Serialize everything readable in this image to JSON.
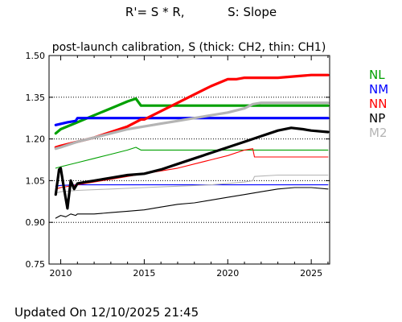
{
  "header": {
    "formula_text": "R'= S * R,",
    "formula_note": "S: Slope"
  },
  "footer": {
    "updated_text": "Updated On 12/10/2025 21:45"
  },
  "chart_data": {
    "type": "line",
    "title": "post-launch calibration, S (thick: CH2, thin: CH1)",
    "xlabel": "",
    "ylabel": "",
    "xlim": [
      2009.3,
      2026.1
    ],
    "ylim": [
      0.75,
      1.5
    ],
    "xticks": [
      2010,
      2015,
      2020,
      2025
    ],
    "yticks": [
      0.75,
      0.9,
      1.05,
      1.2,
      1.35,
      1.5
    ],
    "ytick_labels": [
      "0.75",
      "0.90",
      "1.05",
      "1.20",
      "1.35",
      "1.50"
    ],
    "grid": "horizontal dotted",
    "legend_placement": "right",
    "legend": [
      {
        "name": "NL",
        "color": "#00a000"
      },
      {
        "name": "NM",
        "color": "#0000ff"
      },
      {
        "name": "NN",
        "color": "#ff0000"
      },
      {
        "name": "NP",
        "color": "#000000"
      },
      {
        "name": "M2",
        "color": "#b4b4b4"
      }
    ],
    "series": [
      {
        "name": "NL",
        "channel": "CH2",
        "thick": true,
        "color": "#00a000",
        "x": [
          2009.7,
          2010.0,
          2011.0,
          2012.0,
          2013.0,
          2014.0,
          2014.5,
          2014.8,
          2015.0,
          2018.0,
          2021.0,
          2024.0,
          2026.0
        ],
        "y": [
          1.22,
          1.235,
          1.26,
          1.285,
          1.31,
          1.335,
          1.345,
          1.32,
          1.32,
          1.32,
          1.32,
          1.32,
          1.32
        ]
      },
      {
        "name": "NM",
        "channel": "CH2",
        "thick": true,
        "color": "#0000ff",
        "x": [
          2009.7,
          2010.4,
          2010.9,
          2011.0,
          2015.0,
          2020.0,
          2026.0
        ],
        "y": [
          1.25,
          1.26,
          1.265,
          1.275,
          1.275,
          1.275,
          1.275
        ]
      },
      {
        "name": "NN",
        "channel": "CH2",
        "thick": true,
        "color": "#ff0000",
        "x": [
          2009.7,
          2010.0,
          2011.0,
          2012.0,
          2013.0,
          2014.0,
          2014.8,
          2015.0,
          2016.0,
          2017.0,
          2018.0,
          2019.0,
          2020.0,
          2020.5,
          2021.0,
          2022.0,
          2023.0,
          2024.0,
          2025.0,
          2026.0
        ],
        "y": [
          1.17,
          1.175,
          1.19,
          1.205,
          1.225,
          1.245,
          1.27,
          1.27,
          1.3,
          1.33,
          1.36,
          1.39,
          1.415,
          1.415,
          1.42,
          1.42,
          1.42,
          1.425,
          1.43,
          1.43
        ]
      },
      {
        "name": "NP",
        "channel": "CH2",
        "thick": true,
        "color": "#000000",
        "x": [
          2009.7,
          2009.9,
          2010.0,
          2010.2,
          2010.4,
          2010.6,
          2010.8,
          2011.0,
          2011.5,
          2012.0,
          2013.0,
          2014.0,
          2015.0,
          2016.0,
          2017.0,
          2018.0,
          2019.0,
          2020.0,
          2021.0,
          2022.0,
          2023.0,
          2023.8,
          2024.5,
          2025.0,
          2026.0
        ],
        "y": [
          1.0,
          1.09,
          1.095,
          1.02,
          0.95,
          1.05,
          1.02,
          1.04,
          1.045,
          1.05,
          1.06,
          1.07,
          1.075,
          1.09,
          1.11,
          1.13,
          1.15,
          1.17,
          1.19,
          1.21,
          1.23,
          1.24,
          1.235,
          1.23,
          1.225
        ]
      },
      {
        "name": "M2",
        "channel": "CH2",
        "thick": true,
        "color": "#b4b4b4",
        "x": [
          2009.7,
          2010.0,
          2011.0,
          2012.0,
          2013.0,
          2014.0,
          2015.0,
          2016.0,
          2017.0,
          2018.0,
          2019.0,
          2020.0,
          2021.0,
          2021.5,
          2022.0,
          2024.0,
          2026.0
        ],
        "y": [
          1.165,
          1.17,
          1.19,
          1.205,
          1.22,
          1.235,
          1.245,
          1.255,
          1.265,
          1.275,
          1.285,
          1.295,
          1.31,
          1.325,
          1.33,
          1.33,
          1.33
        ]
      },
      {
        "name": "NL",
        "channel": "CH1",
        "thick": false,
        "color": "#00a000",
        "x": [
          2009.7,
          2010.0,
          2011.0,
          2012.0,
          2013.0,
          2014.0,
          2014.5,
          2014.8,
          2015.0,
          2020.0,
          2026.0
        ],
        "y": [
          1.095,
          1.1,
          1.115,
          1.13,
          1.145,
          1.16,
          1.17,
          1.16,
          1.16,
          1.16,
          1.16
        ]
      },
      {
        "name": "NM",
        "channel": "CH1",
        "thick": false,
        "color": "#0000ff",
        "x": [
          2009.7,
          2010.0,
          2011.0,
          2015.0,
          2020.0,
          2026.0
        ],
        "y": [
          1.03,
          1.033,
          1.035,
          1.035,
          1.035,
          1.035
        ]
      },
      {
        "name": "NN",
        "channel": "CH1",
        "thick": false,
        "color": "#ff0000",
        "x": [
          2009.7,
          2010.0,
          2011.0,
          2012.0,
          2013.0,
          2014.0,
          2015.0,
          2016.0,
          2017.0,
          2018.0,
          2019.0,
          2020.0,
          2021.0,
          2021.5,
          2021.6,
          2024.0,
          2026.0
        ],
        "y": [
          1.02,
          1.025,
          1.035,
          1.045,
          1.055,
          1.065,
          1.075,
          1.085,
          1.095,
          1.11,
          1.125,
          1.14,
          1.16,
          1.165,
          1.135,
          1.135,
          1.135
        ]
      },
      {
        "name": "NP",
        "channel": "CH1",
        "thick": false,
        "color": "#000000",
        "x": [
          2009.7,
          2010.0,
          2010.3,
          2010.6,
          2010.9,
          2011.0,
          2012.0,
          2013.0,
          2014.0,
          2015.0,
          2016.0,
          2017.0,
          2018.0,
          2019.0,
          2020.0,
          2021.0,
          2022.0,
          2023.0,
          2024.0,
          2025.0,
          2026.0
        ],
        "y": [
          0.915,
          0.925,
          0.92,
          0.93,
          0.925,
          0.93,
          0.93,
          0.935,
          0.94,
          0.945,
          0.955,
          0.965,
          0.97,
          0.98,
          0.99,
          1.0,
          1.01,
          1.02,
          1.025,
          1.025,
          1.02
        ]
      },
      {
        "name": "M2",
        "channel": "CH1",
        "thick": false,
        "color": "#b4b4b4",
        "x": [
          2009.7,
          2010.0,
          2011.0,
          2013.0,
          2015.0,
          2017.0,
          2019.0,
          2020.0,
          2021.0,
          2021.5,
          2021.6,
          2023.0,
          2026.0
        ],
        "y": [
          1.005,
          1.01,
          1.015,
          1.02,
          1.025,
          1.03,
          1.035,
          1.04,
          1.045,
          1.05,
          1.065,
          1.07,
          1.07
        ]
      }
    ]
  }
}
